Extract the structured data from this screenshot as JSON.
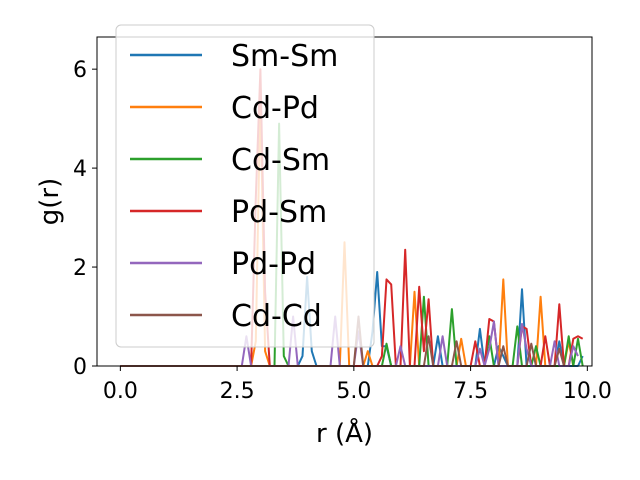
{
  "chart_data": {
    "type": "line",
    "title": "",
    "xlabel": "r (Å)",
    "ylabel": "g(r)",
    "xlim": [
      -0.5,
      10.1
    ],
    "ylim": [
      0,
      6.65
    ],
    "xticks": [
      0.0,
      2.5,
      5.0,
      7.5,
      10.0
    ],
    "xtick_labels": [
      "0.0",
      "2.5",
      "5.0",
      "7.5",
      "10.0"
    ],
    "yticks": [
      0,
      2,
      4,
      6
    ],
    "ytick_labels": [
      "0",
      "2",
      "4",
      "6"
    ],
    "grid": false,
    "legend_position": "upper-left",
    "series": [
      {
        "name": "Sm-Sm",
        "color": "#1f77b4",
        "points": [
          [
            0,
            0
          ],
          [
            3.8,
            0
          ],
          [
            3.9,
            0.2
          ],
          [
            4.0,
            1.8
          ],
          [
            4.1,
            0.3
          ],
          [
            4.2,
            0
          ],
          [
            5.3,
            0
          ],
          [
            5.4,
            0.7
          ],
          [
            5.5,
            1.9
          ],
          [
            5.6,
            0.4
          ],
          [
            5.7,
            0.4
          ],
          [
            5.8,
            0
          ],
          [
            6.7,
            0
          ],
          [
            6.8,
            0.6
          ],
          [
            6.9,
            0
          ],
          [
            7.6,
            0
          ],
          [
            7.7,
            0.75
          ],
          [
            7.8,
            0
          ],
          [
            8.0,
            0
          ],
          [
            8.1,
            0.4
          ],
          [
            8.3,
            0
          ],
          [
            8.5,
            0
          ],
          [
            8.6,
            1.55
          ],
          [
            8.7,
            0
          ],
          [
            9.3,
            0
          ],
          [
            9.4,
            0.5
          ],
          [
            9.5,
            0
          ],
          [
            9.8,
            0
          ],
          [
            9.9,
            0.2
          ]
        ]
      },
      {
        "name": "Cd-Pd",
        "color": "#ff7f0e",
        "points": [
          [
            0,
            0
          ],
          [
            2.8,
            0
          ],
          [
            2.9,
            0.5
          ],
          [
            3.0,
            5.5
          ],
          [
            3.1,
            0.3
          ],
          [
            3.2,
            0
          ],
          [
            4.7,
            0
          ],
          [
            4.8,
            2.5
          ],
          [
            4.9,
            0
          ],
          [
            5.2,
            0
          ],
          [
            5.3,
            0.3
          ],
          [
            5.4,
            0
          ],
          [
            6.2,
            0
          ],
          [
            6.3,
            1.5
          ],
          [
            6.4,
            0
          ],
          [
            7.2,
            0
          ],
          [
            7.3,
            0.55
          ],
          [
            7.4,
            0
          ],
          [
            8.1,
            0
          ],
          [
            8.2,
            1.75
          ],
          [
            8.3,
            0
          ],
          [
            8.9,
            0
          ],
          [
            9.0,
            1.4
          ],
          [
            9.1,
            0
          ],
          [
            9.5,
            0
          ],
          [
            9.6,
            0.5
          ],
          [
            9.7,
            0
          ]
        ]
      },
      {
        "name": "Cd-Sm",
        "color": "#2ca02c",
        "points": [
          [
            0,
            0
          ],
          [
            3.3,
            0
          ],
          [
            3.4,
            4.9
          ],
          [
            3.5,
            0.2
          ],
          [
            3.6,
            0
          ],
          [
            5.6,
            0
          ],
          [
            5.7,
            0.45
          ],
          [
            5.8,
            0
          ],
          [
            6.4,
            0
          ],
          [
            6.5,
            1.4
          ],
          [
            6.6,
            0
          ],
          [
            7.0,
            0
          ],
          [
            7.1,
            1.15
          ],
          [
            7.2,
            0
          ],
          [
            7.8,
            0
          ],
          [
            7.9,
            0.6
          ],
          [
            8.0,
            0
          ],
          [
            8.4,
            0
          ],
          [
            8.5,
            0.8
          ],
          [
            8.6,
            0
          ],
          [
            8.8,
            0
          ],
          [
            8.9,
            0.4
          ],
          [
            9.0,
            0
          ],
          [
            9.5,
            0
          ],
          [
            9.6,
            0.6
          ],
          [
            9.7,
            0
          ],
          [
            9.8,
            0.55
          ],
          [
            9.9,
            0
          ]
        ]
      },
      {
        "name": "Pd-Sm",
        "color": "#d62728",
        "points": [
          [
            0,
            0
          ],
          [
            2.8,
            0
          ],
          [
            2.9,
            3.4
          ],
          [
            3.0,
            6.0
          ],
          [
            3.1,
            1.5
          ],
          [
            3.2,
            0
          ],
          [
            5.5,
            0
          ],
          [
            5.6,
            0.2
          ],
          [
            5.7,
            1.75
          ],
          [
            5.8,
            1.65
          ],
          [
            5.9,
            0
          ],
          [
            6.0,
            0
          ],
          [
            6.1,
            2.35
          ],
          [
            6.2,
            0
          ],
          [
            6.3,
            0
          ],
          [
            6.4,
            1.6
          ],
          [
            6.5,
            0.3
          ],
          [
            6.6,
            1.35
          ],
          [
            6.7,
            0
          ],
          [
            7.5,
            0
          ],
          [
            7.6,
            0.5
          ],
          [
            7.7,
            0
          ],
          [
            7.8,
            0
          ],
          [
            7.9,
            0.95
          ],
          [
            8.0,
            0.9
          ],
          [
            8.1,
            0
          ],
          [
            8.5,
            0
          ],
          [
            8.6,
            0.8
          ],
          [
            8.7,
            0.75
          ],
          [
            8.8,
            0
          ],
          [
            9.0,
            0
          ],
          [
            9.1,
            0.6
          ],
          [
            9.2,
            0
          ],
          [
            9.3,
            0
          ],
          [
            9.4,
            1.25
          ],
          [
            9.5,
            0
          ],
          [
            9.6,
            0
          ],
          [
            9.7,
            0.55
          ],
          [
            9.8,
            0.6
          ],
          [
            9.9,
            0.55
          ]
        ]
      },
      {
        "name": "Pd-Pd",
        "color": "#9467bd",
        "points": [
          [
            0,
            0
          ],
          [
            2.6,
            0
          ],
          [
            2.7,
            0.6
          ],
          [
            2.8,
            0
          ],
          [
            3.6,
            0
          ],
          [
            3.7,
            1.0
          ],
          [
            3.8,
            0
          ],
          [
            4.5,
            0
          ],
          [
            4.6,
            1.0
          ],
          [
            4.7,
            0
          ],
          [
            5.0,
            0
          ],
          [
            5.1,
            0.7
          ],
          [
            5.2,
            0
          ],
          [
            5.9,
            0
          ],
          [
            6.0,
            0.4
          ],
          [
            6.1,
            0
          ],
          [
            6.8,
            0
          ],
          [
            6.9,
            0.6
          ],
          [
            7.0,
            0
          ],
          [
            7.6,
            0
          ],
          [
            7.7,
            0.35
          ],
          [
            7.8,
            0
          ],
          [
            7.9,
            0.35
          ],
          [
            8.0,
            0.9
          ],
          [
            8.1,
            0
          ],
          [
            8.5,
            0
          ],
          [
            8.6,
            0.85
          ],
          [
            8.7,
            0.35
          ],
          [
            8.8,
            0
          ],
          [
            9.2,
            0
          ],
          [
            9.3,
            0.5
          ],
          [
            9.4,
            0
          ],
          [
            9.6,
            0
          ],
          [
            9.7,
            0.4
          ],
          [
            9.8,
            0.2
          ]
        ]
      },
      {
        "name": "Cd-Cd",
        "color": "#8c564b",
        "points": [
          [
            0,
            0
          ],
          [
            5.0,
            0
          ],
          [
            5.1,
            1.0
          ],
          [
            5.2,
            0
          ],
          [
            6.5,
            0
          ],
          [
            6.6,
            0.6
          ],
          [
            6.7,
            0
          ],
          [
            7.1,
            0
          ],
          [
            7.2,
            0.5
          ],
          [
            7.3,
            0
          ],
          [
            8.1,
            0
          ],
          [
            8.2,
            0.4
          ],
          [
            8.3,
            0
          ],
          [
            8.7,
            0
          ],
          [
            8.8,
            0.45
          ],
          [
            8.9,
            0
          ],
          [
            9.3,
            0
          ],
          [
            9.4,
            0.35
          ],
          [
            9.5,
            0
          ]
        ]
      }
    ]
  }
}
